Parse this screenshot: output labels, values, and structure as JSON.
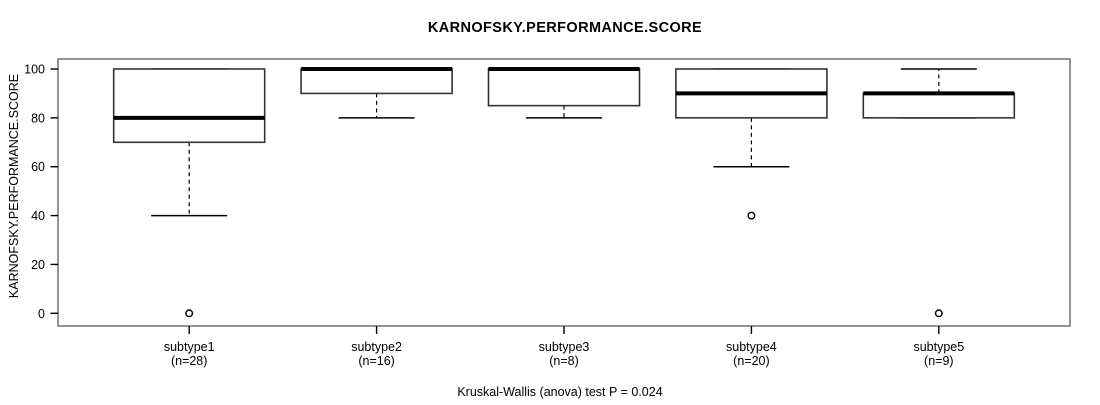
{
  "chart_data": {
    "type": "boxplot",
    "title": "KARNOFSKY.PERFORMANCE.SCORE",
    "ylabel": "KARNOFSKY.PERFORMANCE.SCORE",
    "caption": "Kruskal-Wallis (anova) test P = 0.024",
    "ylim": [
      0,
      100
    ],
    "yticks": [
      0,
      20,
      40,
      60,
      80,
      100
    ],
    "grid": "off",
    "colors": {
      "line": "#000000",
      "frame": "#666666",
      "background": "#ffffff"
    },
    "groups": [
      {
        "label": "subtype1",
        "n_label": "(n=28)",
        "n": 28,
        "whisker_low": 40,
        "q1": 70,
        "median": 80,
        "q3": 100,
        "whisker_high": 100,
        "outliers": [
          0
        ]
      },
      {
        "label": "subtype2",
        "n_label": "(n=16)",
        "n": 16,
        "whisker_low": 80,
        "q1": 90,
        "median": 100,
        "q3": 100,
        "whisker_high": 100,
        "outliers": []
      },
      {
        "label": "subtype3",
        "n_label": "(n=8)",
        "n": 8,
        "whisker_low": 80,
        "q1": 85,
        "median": 100,
        "q3": 100,
        "whisker_high": 100,
        "outliers": []
      },
      {
        "label": "subtype4",
        "n_label": "(n=20)",
        "n": 20,
        "whisker_low": 60,
        "q1": 80,
        "median": 90,
        "q3": 100,
        "whisker_high": 100,
        "outliers": [
          40
        ]
      },
      {
        "label": "subtype5",
        "n_label": "(n=9)",
        "n": 9,
        "whisker_low": 80,
        "q1": 80,
        "median": 90,
        "q3": 90,
        "whisker_high": 100,
        "outliers": [
          0
        ]
      }
    ]
  }
}
